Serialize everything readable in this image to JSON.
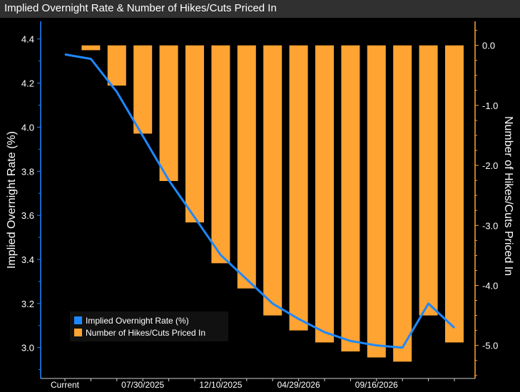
{
  "window": {
    "title": "Implied Overnight Rate & Number of Hikes/Cuts Priced In"
  },
  "colors": {
    "line": "#1e88ff",
    "bar": "#ffa332",
    "axis_left": "#1e88ff",
    "axis_right": "#ffa332",
    "text": "#ffffff"
  },
  "chart_data": {
    "type": "bar+line",
    "title": "Implied Overnight Rate & Number of Hikes/Cuts Priced In",
    "x_tick_labels": [
      "Current",
      "07/30/2025",
      "12/10/2025",
      "04/29/2026",
      "09/16/2026"
    ],
    "y_left": {
      "label": "Implied Overnight Rate (%)",
      "range": [
        2.86,
        4.48
      ],
      "ticks": [
        "3.0",
        "3.2",
        "3.4",
        "3.6",
        "3.8",
        "4.0",
        "4.2",
        "4.4"
      ]
    },
    "y_right": {
      "label": "Number of Hikes/Cuts Priced In",
      "range": [
        -5.55,
        0.4
      ],
      "ticks": [
        "0.0",
        "-1.0",
        "-2.0",
        "-3.0",
        "-4.0",
        "-5.0"
      ]
    },
    "legend": [
      "Implied Overnight Rate (%)",
      "Number of Hikes/Cuts Priced In"
    ],
    "series": [
      {
        "name": "Implied Overnight Rate (%)",
        "axis": "left",
        "type": "line",
        "values": [
          4.33,
          4.31,
          4.16,
          3.96,
          3.76,
          3.59,
          3.42,
          3.31,
          3.2,
          3.13,
          3.07,
          3.03,
          3.01,
          3.0,
          3.2,
          3.09
        ]
      },
      {
        "name": "Number of Hikes/Cuts Priced In",
        "axis": "right",
        "type": "bar",
        "values": [
          -0.08,
          -0.67,
          -1.47,
          -2.26,
          -2.95,
          -3.63,
          -4.05,
          -4.5,
          -4.75,
          -4.95,
          -5.1,
          -5.2,
          -5.27,
          -4.5,
          -4.95
        ]
      }
    ]
  }
}
